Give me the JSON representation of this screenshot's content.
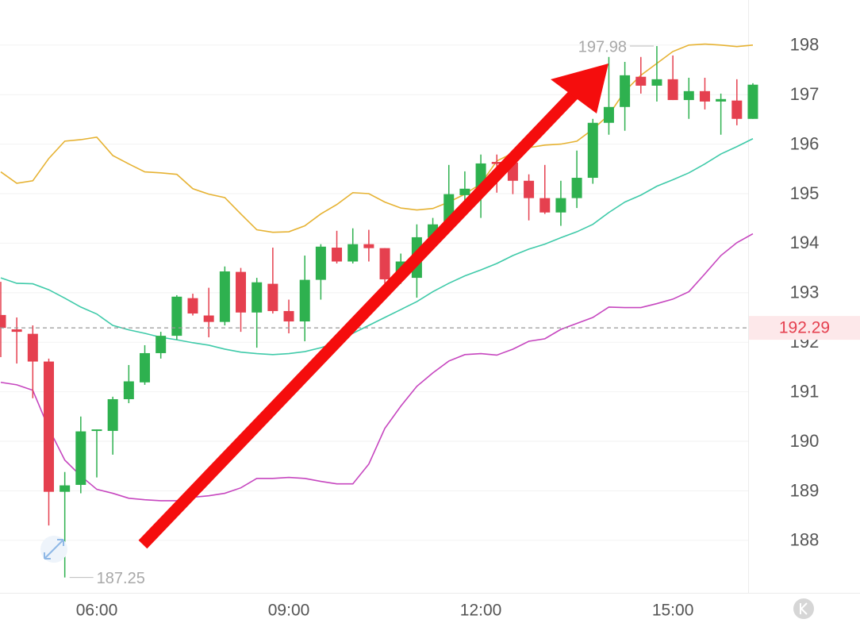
{
  "chart_data": {
    "type": "candlestick",
    "categories": [
      null,
      null,
      null,
      null,
      null,
      null,
      "06:00",
      null,
      null,
      null,
      null,
      null,
      null,
      null,
      null,
      null,
      null,
      null,
      "09:00",
      null,
      null,
      null,
      null,
      null,
      null,
      null,
      null,
      null,
      null,
      null,
      "12:00",
      null,
      null,
      null,
      null,
      null,
      null,
      null,
      null,
      null,
      null,
      null,
      "15:00",
      null,
      null,
      null,
      null,
      null
    ],
    "open": [
      192.55,
      192.26,
      192.17,
      191.61,
      188.98,
      189.12,
      190.21,
      190.21,
      190.85,
      191.19,
      191.78,
      192.13,
      192.89,
      192.54,
      192.41,
      193.42,
      192.6,
      193.18,
      192.63,
      192.42,
      193.26,
      193.91,
      193.63,
      193.98,
      193.9,
      193.34,
      193.3,
      194.11,
      194.43,
      194.97,
      195.07,
      195.64,
      195.63,
      195.26,
      194.91,
      194.62,
      194.91,
      195.32,
      196.43,
      196.75,
      197.36,
      197.18,
      197.31,
      196.89,
      197.07,
      196.86,
      196.88,
      196.51
    ],
    "high": [
      193.22,
      192.5,
      192.34,
      191.67,
      189.38,
      190.5,
      190.24,
      190.9,
      191.54,
      191.94,
      192.21,
      192.95,
      192.98,
      193.1,
      193.53,
      193.5,
      193.3,
      193.91,
      192.86,
      193.75,
      193.98,
      194.25,
      194.3,
      194.27,
      193.9,
      193.79,
      194.38,
      194.51,
      195.58,
      195.45,
      195.79,
      195.79,
      195.87,
      195.39,
      195.58,
      195.26,
      195.87,
      196.51,
      197.76,
      197.66,
      197.76,
      197.98,
      197.79,
      197.34,
      197.34,
      197.02,
      197.31,
      197.23
    ],
    "low": [
      191.7,
      191.57,
      190.87,
      188.3,
      187.25,
      188.95,
      189.27,
      189.73,
      190.77,
      191.14,
      191.67,
      192.05,
      192.54,
      192.1,
      192.34,
      192.21,
      191.89,
      192.58,
      192.18,
      192.02,
      192.86,
      193.59,
      193.59,
      193.63,
      193.18,
      193.18,
      192.9,
      194.01,
      194.35,
      194.71,
      194.51,
      195.02,
      194.99,
      194.46,
      194.59,
      194.35,
      194.71,
      195.2,
      196.19,
      196.27,
      197.02,
      196.86,
      196.89,
      196.51,
      196.7,
      196.19,
      196.38,
      196.51
    ],
    "close": [
      192.29,
      192.21,
      191.61,
      188.98,
      189.11,
      190.2,
      190.24,
      190.85,
      191.21,
      191.78,
      192.13,
      192.92,
      192.58,
      192.41,
      193.43,
      192.6,
      193.21,
      192.63,
      192.42,
      193.26,
      193.93,
      193.63,
      193.98,
      193.9,
      193.27,
      193.63,
      194.12,
      194.38,
      194.99,
      195.1,
      195.61,
      195.6,
      195.26,
      194.91,
      194.62,
      194.91,
      195.32,
      196.43,
      196.75,
      197.39,
      197.18,
      197.31,
      196.89,
      197.07,
      196.86,
      196.91,
      196.51,
      197.2
    ],
    "up_color": "#2eb14f",
    "down_color": "#e5404f",
    "bands": [
      {
        "color": "#e6b232",
        "values": [
          195.44,
          195.21,
          195.26,
          195.71,
          196.06,
          196.09,
          196.14,
          195.77,
          195.6,
          195.44,
          195.42,
          195.39,
          195.1,
          194.99,
          194.92,
          194.59,
          194.27,
          194.22,
          194.23,
          194.35,
          194.59,
          194.78,
          195.02,
          195.0,
          194.83,
          194.71,
          194.67,
          194.7,
          194.83,
          194.99,
          195.2,
          195.66,
          195.82,
          195.93,
          195.98,
          196.0,
          196.06,
          196.3,
          196.59,
          197.07,
          197.39,
          197.63,
          197.87,
          198.0,
          198.02,
          198.0,
          197.97,
          198.0
        ]
      },
      {
        "color": "#3fcaa9",
        "values": [
          193.3,
          193.19,
          193.18,
          193.06,
          192.89,
          192.71,
          192.57,
          192.34,
          192.25,
          192.18,
          192.1,
          192.05,
          191.99,
          191.94,
          191.86,
          191.8,
          191.77,
          191.75,
          191.77,
          191.81,
          191.89,
          191.99,
          192.18,
          192.34,
          192.5,
          192.66,
          192.82,
          193.02,
          193.19,
          193.34,
          193.46,
          193.59,
          193.75,
          193.88,
          193.98,
          194.11,
          194.23,
          194.38,
          194.62,
          194.83,
          194.97,
          195.15,
          195.28,
          195.42,
          195.6,
          195.8,
          195.95,
          196.11
        ]
      },
      {
        "color": "#c646bf",
        "values": [
          191.19,
          191.14,
          191.03,
          190.26,
          189.62,
          189.3,
          189.03,
          188.95,
          188.85,
          188.82,
          188.8,
          188.8,
          188.87,
          188.9,
          188.95,
          189.06,
          189.25,
          189.25,
          189.27,
          189.25,
          189.19,
          189.14,
          189.14,
          189.54,
          190.26,
          190.71,
          191.11,
          191.38,
          191.62,
          191.75,
          191.77,
          191.74,
          191.86,
          192.02,
          192.07,
          192.26,
          192.38,
          192.5,
          192.71,
          192.7,
          192.7,
          192.78,
          192.87,
          193.02,
          193.38,
          193.75,
          194.01,
          194.19
        ]
      }
    ],
    "price_line": 192.29,
    "price_color": "#e5404f",
    "annotations": [
      {
        "label": "197.98",
        "value": 197.98,
        "of": "high"
      },
      {
        "label": "187.25",
        "value": 187.25,
        "of": "low"
      }
    ],
    "ylim": [
      186.94,
      198.91
    ],
    "yticks": [
      188,
      189,
      190,
      191,
      192,
      193,
      194,
      195,
      196,
      197,
      198
    ],
    "grid": true
  }
}
